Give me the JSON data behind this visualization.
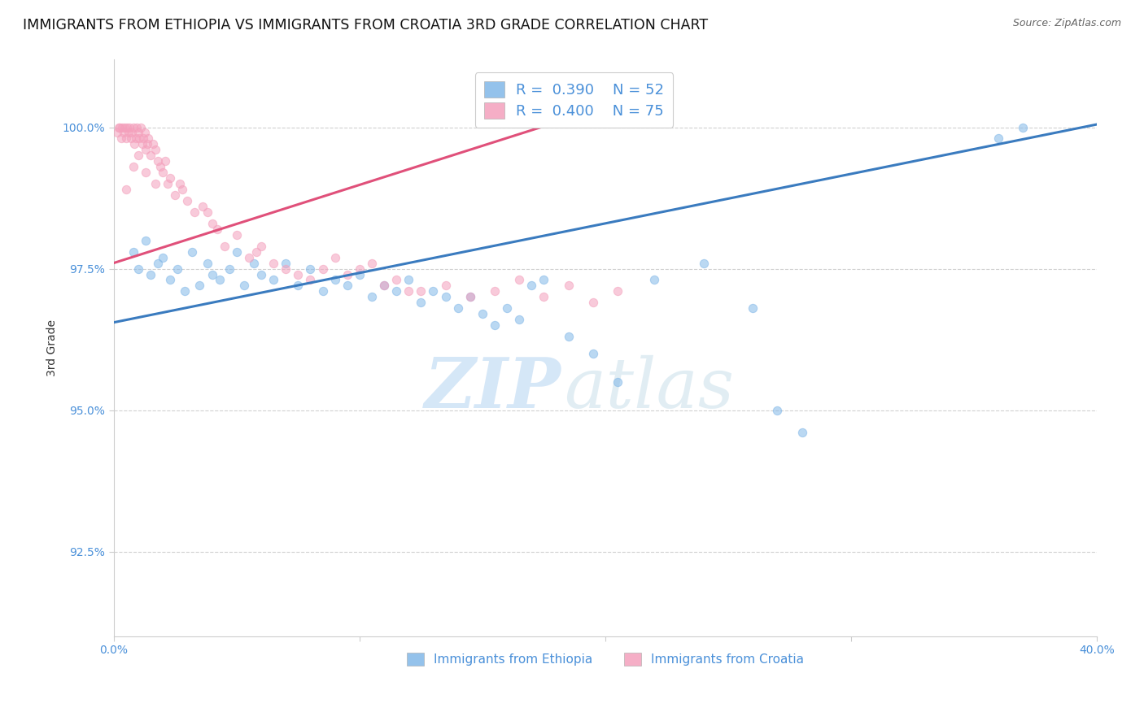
{
  "title": "IMMIGRANTS FROM ETHIOPIA VS IMMIGRANTS FROM CROATIA 3RD GRADE CORRELATION CHART",
  "source": "Source: ZipAtlas.com",
  "ylabel": "3rd Grade",
  "xlim": [
    0.0,
    40.0
  ],
  "ylim": [
    91.0,
    101.2
  ],
  "yticks": [
    92.5,
    95.0,
    97.5,
    100.0
  ],
  "ytick_labels": [
    "92.5%",
    "95.0%",
    "97.5%",
    "100.0%"
  ],
  "xticks": [
    0.0,
    10.0,
    20.0,
    30.0,
    40.0
  ],
  "xtick_labels": [
    "0.0%",
    "",
    "",
    "",
    "40.0%"
  ],
  "blue_color": "#82b8e8",
  "pink_color": "#f4a0bc",
  "blue_line_color": "#3a7bbf",
  "pink_line_color": "#e0507a",
  "legend_label_blue": "Immigrants from Ethiopia",
  "legend_label_pink": "Immigrants from Croatia",
  "background_color": "#ffffff",
  "grid_color": "#d0d0d0",
  "watermark_zip": "ZIP",
  "watermark_atlas": "atlas",
  "title_fontsize": 12.5,
  "tick_fontsize": 10,
  "legend_fontsize": 13,
  "dot_size": 55,
  "dot_alpha": 0.55,
  "line_width": 2.2,
  "blue_trend_x": [
    0.0,
    40.0
  ],
  "blue_trend_y": [
    96.55,
    100.05
  ],
  "pink_trend_x": [
    0.0,
    21.0
  ],
  "pink_trend_y": [
    97.6,
    100.5
  ],
  "blue_scatter_x": [
    0.8,
    1.0,
    1.3,
    1.5,
    1.8,
    2.0,
    2.3,
    2.6,
    2.9,
    3.2,
    3.5,
    3.8,
    4.0,
    4.3,
    4.7,
    5.0,
    5.3,
    5.7,
    6.0,
    6.5,
    7.0,
    7.5,
    8.0,
    8.5,
    9.0,
    9.5,
    10.0,
    10.5,
    11.0,
    11.5,
    12.0,
    12.5,
    13.0,
    13.5,
    14.0,
    14.5,
    15.0,
    15.5,
    16.0,
    16.5,
    17.0,
    17.5,
    18.5,
    19.5,
    20.5,
    22.0,
    24.0,
    26.0,
    27.0,
    28.0,
    36.0,
    37.0
  ],
  "blue_scatter_y": [
    97.8,
    97.5,
    98.0,
    97.4,
    97.6,
    97.7,
    97.3,
    97.5,
    97.1,
    97.8,
    97.2,
    97.6,
    97.4,
    97.3,
    97.5,
    97.8,
    97.2,
    97.6,
    97.4,
    97.3,
    97.6,
    97.2,
    97.5,
    97.1,
    97.3,
    97.2,
    97.4,
    97.0,
    97.2,
    97.1,
    97.3,
    96.9,
    97.1,
    97.0,
    96.8,
    97.0,
    96.7,
    96.5,
    96.8,
    96.6,
    97.2,
    97.3,
    96.3,
    96.0,
    95.5,
    97.3,
    97.6,
    96.8,
    95.0,
    94.6,
    99.8,
    100.0
  ],
  "pink_scatter_x": [
    0.15,
    0.2,
    0.25,
    0.3,
    0.35,
    0.4,
    0.45,
    0.5,
    0.55,
    0.6,
    0.65,
    0.7,
    0.75,
    0.8,
    0.85,
    0.9,
    0.95,
    1.0,
    1.05,
    1.1,
    1.15,
    1.2,
    1.25,
    1.3,
    1.35,
    1.4,
    1.5,
    1.6,
    1.7,
    1.8,
    1.9,
    2.0,
    2.1,
    2.2,
    2.3,
    2.5,
    2.7,
    3.0,
    3.3,
    3.6,
    4.0,
    4.5,
    5.0,
    5.5,
    6.0,
    7.0,
    8.0,
    9.5,
    10.5,
    11.5,
    12.5,
    13.5,
    14.5,
    15.5,
    16.5,
    17.5,
    18.5,
    19.5,
    20.5,
    3.8,
    4.2,
    5.8,
    6.5,
    7.5,
    8.5,
    9.0,
    10.0,
    11.0,
    12.0,
    1.0,
    0.5,
    0.8,
    1.3,
    1.7,
    2.8
  ],
  "pink_scatter_y": [
    99.9,
    100.0,
    100.0,
    99.8,
    100.0,
    99.9,
    100.0,
    99.8,
    100.0,
    99.9,
    100.0,
    99.8,
    99.9,
    100.0,
    99.7,
    99.8,
    100.0,
    99.9,
    99.8,
    100.0,
    99.7,
    99.8,
    99.9,
    99.6,
    99.7,
    99.8,
    99.5,
    99.7,
    99.6,
    99.4,
    99.3,
    99.2,
    99.4,
    99.0,
    99.1,
    98.8,
    99.0,
    98.7,
    98.5,
    98.6,
    98.3,
    97.9,
    98.1,
    97.7,
    97.9,
    97.5,
    97.3,
    97.4,
    97.6,
    97.3,
    97.1,
    97.2,
    97.0,
    97.1,
    97.3,
    97.0,
    97.2,
    96.9,
    97.1,
    98.5,
    98.2,
    97.8,
    97.6,
    97.4,
    97.5,
    97.7,
    97.5,
    97.2,
    97.1,
    99.5,
    98.9,
    99.3,
    99.2,
    99.0,
    98.9
  ]
}
